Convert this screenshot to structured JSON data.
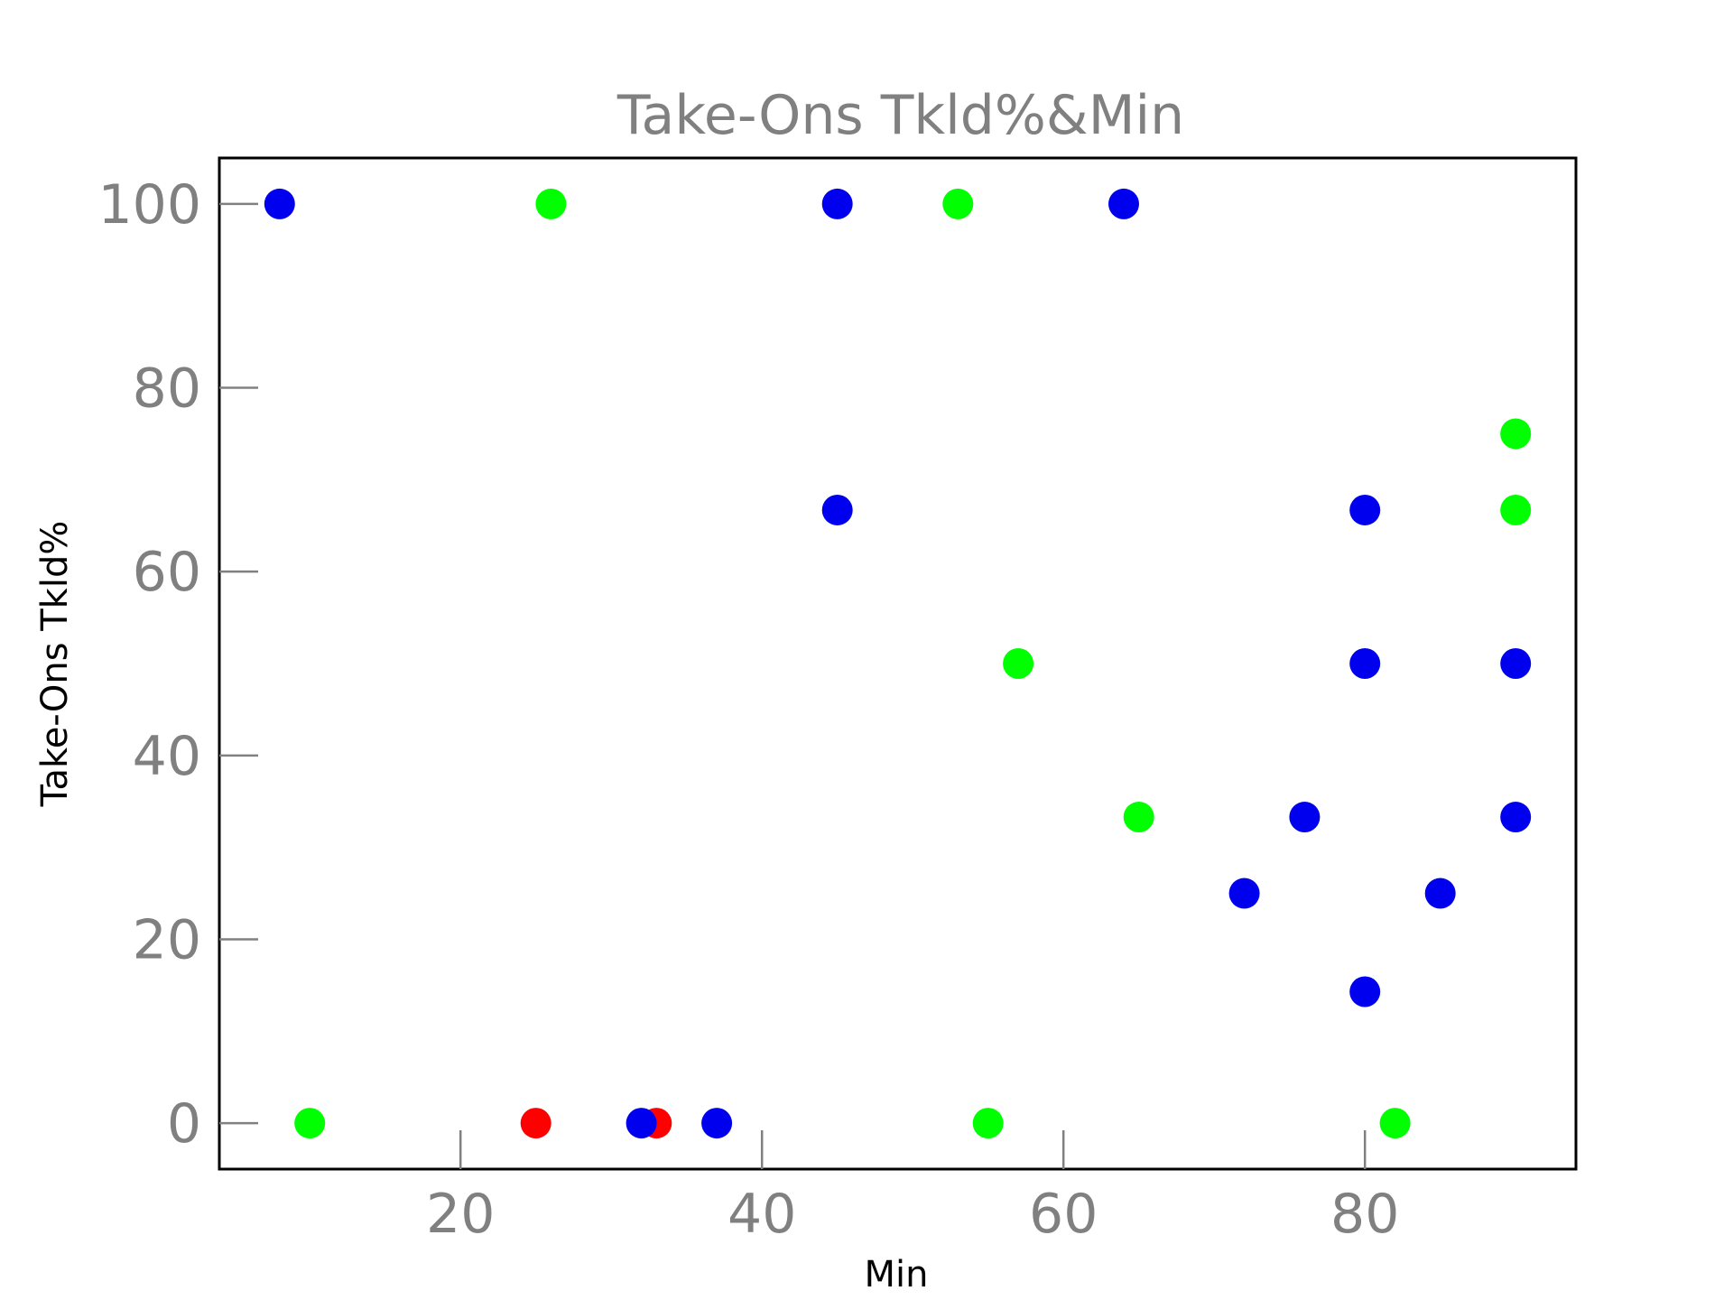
{
  "chart_data": {
    "type": "scatter",
    "title": "Take-Ons Tkld%&Min",
    "xlabel": "Min",
    "ylabel": "Take-Ons Tkld%",
    "xlim": [
      4,
      94
    ],
    "ylim": [
      -5,
      105
    ],
    "xticks": [
      20,
      40,
      60,
      80
    ],
    "yticks": [
      0,
      20,
      40,
      60,
      80,
      100
    ],
    "xtick_labels": [
      "20",
      "40",
      "60",
      "80"
    ],
    "ytick_labels": [
      "0",
      "20",
      "40",
      "60",
      "80",
      "100"
    ],
    "grid": false,
    "colors": {
      "blue": "#0000ee",
      "green": "#00ff00",
      "red": "#ff0000",
      "text": "#808080"
    },
    "points": [
      {
        "x": 8,
        "y": 100,
        "color": "#0000ee"
      },
      {
        "x": 10,
        "y": 0,
        "color": "#00ff00"
      },
      {
        "x": 25,
        "y": 0,
        "color": "#ff0000"
      },
      {
        "x": 26,
        "y": 100,
        "color": "#00ff00"
      },
      {
        "x": 33,
        "y": 0,
        "color": "#ff0000"
      },
      {
        "x": 32,
        "y": 0,
        "color": "#0000ee"
      },
      {
        "x": 37,
        "y": 0,
        "color": "#0000ee"
      },
      {
        "x": 45,
        "y": 100,
        "color": "#0000ee"
      },
      {
        "x": 45,
        "y": 66.7,
        "color": "#0000ee"
      },
      {
        "x": 53,
        "y": 100,
        "color": "#00ff00"
      },
      {
        "x": 55,
        "y": 0,
        "color": "#00ff00"
      },
      {
        "x": 57,
        "y": 50,
        "color": "#00ff00"
      },
      {
        "x": 64,
        "y": 100,
        "color": "#0000ee"
      },
      {
        "x": 65,
        "y": 33.3,
        "color": "#00ff00"
      },
      {
        "x": 72,
        "y": 25,
        "color": "#0000ee"
      },
      {
        "x": 76,
        "y": 33.3,
        "color": "#0000ee"
      },
      {
        "x": 80,
        "y": 66.7,
        "color": "#0000ee"
      },
      {
        "x": 80,
        "y": 50,
        "color": "#0000ee"
      },
      {
        "x": 80,
        "y": 14.3,
        "color": "#0000ee"
      },
      {
        "x": 82,
        "y": 0,
        "color": "#00ff00"
      },
      {
        "x": 85,
        "y": 25,
        "color": "#0000ee"
      },
      {
        "x": 90,
        "y": 75,
        "color": "#00ff00"
      },
      {
        "x": 90,
        "y": 66.7,
        "color": "#00ff00"
      },
      {
        "x": 90,
        "y": 50,
        "color": "#0000ee"
      },
      {
        "x": 90,
        "y": 33.3,
        "color": "#0000ee"
      }
    ]
  }
}
